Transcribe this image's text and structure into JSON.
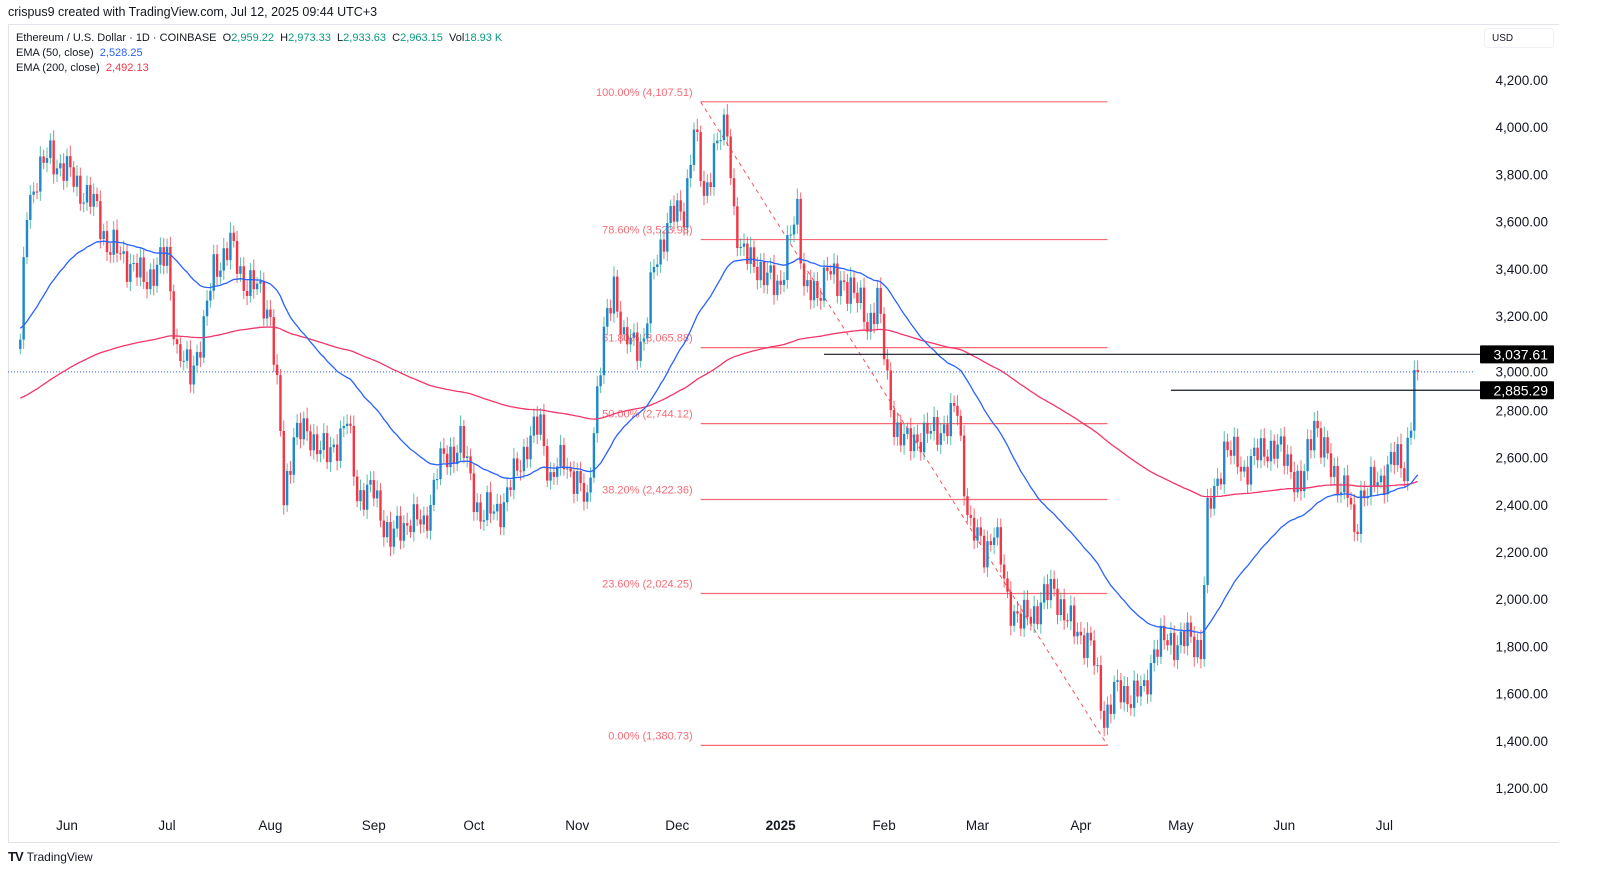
{
  "header": {
    "credit": "crispus9 created with TradingView.com, Jul 12, 2025 09:44 UTC+3",
    "symbol": "Ethereum / U.S. Dollar · 1D · COINBASE",
    "o_label": "O",
    "o": "2,959.22",
    "h_label": "H",
    "h": "2,973.33",
    "l_label": "L",
    "l": "2,933.63",
    "c_label": "C",
    "c": "2,963.15",
    "vol_label": "Vol",
    "vol": "18.93 K",
    "ema50_label": "EMA (50, close)",
    "ema50": "2,528.25",
    "ema200_label": "EMA (200, close)",
    "ema200": "2,492.13"
  },
  "currency": "USD",
  "footer": {
    "logo": "TV",
    "brand": "TradingView"
  },
  "colors": {
    "up_body": "#1e88c8",
    "up_wick": "#22ab94",
    "down": "#f23645",
    "ema50": "#2962ff",
    "ema200": "#f23669",
    "fib": "#f7525f",
    "level": "#131722"
  },
  "chart_data": {
    "type": "candlestick",
    "timeframe": "1D",
    "ylim": [
      1100,
      4300
    ],
    "y_ticks": [
      "4,200.00",
      "4,000.00",
      "3,800.00",
      "3,600.00",
      "3,400.00",
      "3,200.00",
      "3,000.00",
      "2,800.00",
      "2,600.00",
      "2,400.00",
      "2,200.00",
      "2,000.00",
      "1,800.00",
      "1,600.00",
      "1,400.00",
      "1,200.00"
    ],
    "y_tick_values": [
      4200,
      4000,
      3800,
      3600,
      3400,
      3200,
      3000,
      2800,
      2600,
      2400,
      2200,
      2000,
      1800,
      1600,
      1400,
      1200
    ],
    "x_ticks": [
      {
        "label": "Jun",
        "date": "2024-06-01"
      },
      {
        "label": "Jul",
        "date": "2024-07-01"
      },
      {
        "label": "Aug",
        "date": "2024-08-01"
      },
      {
        "label": "Sep",
        "date": "2024-09-01"
      },
      {
        "label": "Oct",
        "date": "2024-10-01"
      },
      {
        "label": "Nov",
        "date": "2024-11-01"
      },
      {
        "label": "Dec",
        "date": "2024-12-01"
      },
      {
        "label": "2025",
        "date": "2025-01-01",
        "bold": true
      },
      {
        "label": "Feb",
        "date": "2025-02-01"
      },
      {
        "label": "Mar",
        "date": "2025-03-01"
      },
      {
        "label": "Apr",
        "date": "2025-04-01"
      },
      {
        "label": "May",
        "date": "2025-05-01"
      },
      {
        "label": "Jun",
        "date": "2025-06-01"
      },
      {
        "label": "Jul",
        "date": "2025-07-01"
      }
    ],
    "price_path": [
      [
        "2024-05-18",
        3100
      ],
      [
        "2024-05-20",
        3650
      ],
      [
        "2024-05-23",
        3800
      ],
      [
        "2024-05-27",
        3880
      ],
      [
        "2024-06-03",
        3780
      ],
      [
        "2024-06-07",
        3700
      ],
      [
        "2024-06-10",
        3650
      ],
      [
        "2024-06-13",
        3500
      ],
      [
        "2024-06-18",
        3450
      ],
      [
        "2024-06-24",
        3350
      ],
      [
        "2024-07-01",
        3450
      ],
      [
        "2024-07-04",
        3050
      ],
      [
        "2024-07-08",
        2950
      ],
      [
        "2024-07-12",
        3150
      ],
      [
        "2024-07-15",
        3400
      ],
      [
        "2024-07-20",
        3500
      ],
      [
        "2024-07-24",
        3350
      ],
      [
        "2024-07-29",
        3300
      ],
      [
        "2024-08-01",
        3200
      ],
      [
        "2024-08-04",
        2700
      ],
      [
        "2024-08-05",
        2420
      ],
      [
        "2024-08-08",
        2700
      ],
      [
        "2024-08-13",
        2700
      ],
      [
        "2024-08-18",
        2600
      ],
      [
        "2024-08-24",
        2750
      ],
      [
        "2024-08-27",
        2450
      ],
      [
        "2024-09-01",
        2450
      ],
      [
        "2024-09-06",
        2250
      ],
      [
        "2024-09-12",
        2350
      ],
      [
        "2024-09-16",
        2300
      ],
      [
        "2024-09-20",
        2550
      ],
      [
        "2024-09-27",
        2670
      ],
      [
        "2024-10-01",
        2450
      ],
      [
        "2024-10-03",
        2350
      ],
      [
        "2024-10-10",
        2400
      ],
      [
        "2024-10-15",
        2600
      ],
      [
        "2024-10-21",
        2750
      ],
      [
        "2024-10-24",
        2500
      ],
      [
        "2024-10-28",
        2600
      ],
      [
        "2024-11-04",
        2400
      ],
      [
        "2024-11-06",
        2750
      ],
      [
        "2024-11-09",
        3100
      ],
      [
        "2024-11-12",
        3350
      ],
      [
        "2024-11-15",
        3080
      ],
      [
        "2024-11-21",
        3100
      ],
      [
        "2024-11-24",
        3400
      ],
      [
        "2024-11-28",
        3600
      ],
      [
        "2024-12-03",
        3650
      ],
      [
        "2024-12-06",
        3990
      ],
      [
        "2024-12-09",
        3700
      ],
      [
        "2024-12-12",
        3900
      ],
      [
        "2024-12-16",
        4000
      ],
      [
        "2024-12-18",
        3650
      ],
      [
        "2024-12-20",
        3450
      ],
      [
        "2024-12-24",
        3450
      ],
      [
        "2024-12-27",
        3350
      ],
      [
        "2025-01-01",
        3350
      ],
      [
        "2025-01-06",
        3650
      ],
      [
        "2025-01-08",
        3350
      ],
      [
        "2025-01-12",
        3250
      ],
      [
        "2025-01-15",
        3450
      ],
      [
        "2025-01-18",
        3300
      ],
      [
        "2025-01-22",
        3350
      ],
      [
        "2025-01-27",
        3150
      ],
      [
        "2025-01-30",
        3300
      ],
      [
        "2025-02-02",
        2900
      ],
      [
        "2025-02-04",
        2750
      ],
      [
        "2025-02-08",
        2650
      ],
      [
        "2025-02-12",
        2700
      ],
      [
        "2025-02-16",
        2700
      ],
      [
        "2025-02-20",
        2750
      ],
      [
        "2025-02-23",
        2800
      ],
      [
        "2025-02-25",
        2500
      ],
      [
        "2025-02-27",
        2300
      ],
      [
        "2025-03-03",
        2200
      ],
      [
        "2025-03-06",
        2300
      ],
      [
        "2025-03-10",
        2000
      ],
      [
        "2025-03-14",
        1900
      ],
      [
        "2025-03-18",
        1950
      ],
      [
        "2025-03-24",
        2050
      ],
      [
        "2025-03-28",
        1900
      ],
      [
        "2025-04-01",
        1850
      ],
      [
        "2025-04-04",
        1800
      ],
      [
        "2025-04-08",
        1500
      ],
      [
        "2025-04-11",
        1600
      ],
      [
        "2025-04-15",
        1600
      ],
      [
        "2025-04-20",
        1600
      ],
      [
        "2025-04-23",
        1800
      ],
      [
        "2025-04-28",
        1820
      ],
      [
        "2025-05-03",
        1830
      ],
      [
        "2025-05-07",
        1800
      ],
      [
        "2025-05-09",
        2350
      ],
      [
        "2025-05-12",
        2500
      ],
      [
        "2025-05-14",
        2650
      ],
      [
        "2025-05-20",
        2550
      ],
      [
        "2025-05-27",
        2650
      ],
      [
        "2025-06-02",
        2600
      ],
      [
        "2025-06-06",
        2450
      ],
      [
        "2025-06-10",
        2780
      ],
      [
        "2025-06-12",
        2650
      ],
      [
        "2025-06-15",
        2550
      ],
      [
        "2025-06-20",
        2450
      ],
      [
        "2025-06-22",
        2250
      ],
      [
        "2025-06-24",
        2450
      ],
      [
        "2025-06-30",
        2500
      ],
      [
        "2025-07-03",
        2600
      ],
      [
        "2025-07-07",
        2550
      ],
      [
        "2025-07-09",
        2780
      ],
      [
        "2025-07-10",
        2960
      ],
      [
        "2025-07-11",
        2963.15
      ]
    ],
    "last_price": 2963.15,
    "series": [
      {
        "name": "EMA (50, close)",
        "period": 50,
        "last": 2528.25
      },
      {
        "name": "EMA (200, close)",
        "period": 200,
        "last": 2492.13
      }
    ],
    "fibonacci": {
      "from": {
        "date": "2024-12-08",
        "price": 4107.51
      },
      "to": {
        "date": "2025-04-09",
        "price": 1380.73
      },
      "levels": [
        {
          "label": "100.00% (4,107.51)",
          "price": 4107.51
        },
        {
          "label": "78.60% (3,523.98)",
          "price": 3523.98
        },
        {
          "label": "61.80% (3,065.88)",
          "price": 3065.88
        },
        {
          "label": "50.00% (2,744.12)",
          "price": 2744.12
        },
        {
          "label": "38.20% (2,422.36)",
          "price": 2422.36
        },
        {
          "label": "23.60% (2,024.25)",
          "price": 2024.25
        },
        {
          "label": "0.00% (1,380.73)",
          "price": 1380.73
        }
      ]
    },
    "horizontal_levels": [
      {
        "label": "3,037.61",
        "price": 3037.61,
        "from": "2025-01-14"
      },
      {
        "label": "2,885.29",
        "price": 2885.29,
        "from": "2025-04-28"
      }
    ]
  }
}
